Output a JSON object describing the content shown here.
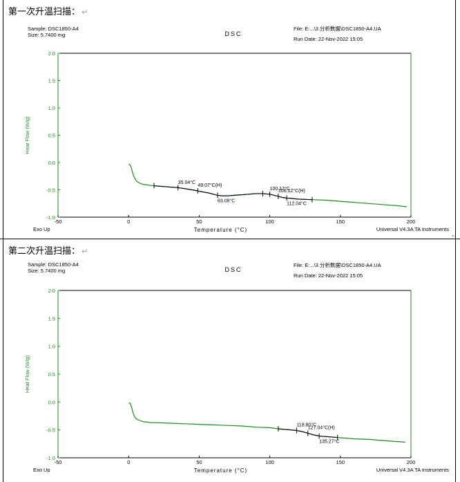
{
  "panels": [
    {
      "heading": "第一次升温扫描：",
      "return_mark": "↵",
      "sample": "Sample: DSC1850-A4",
      "size": "Size:  5.7400 mg",
      "chart_title": "DSC",
      "file": "File: E:...\\3.分析数据\\DSC1850-A4.UA",
      "run_date": "Run Date: 22-Nov-2022 15:05",
      "exo_up": "Exo Up",
      "instrument": "Universal V4.3A TA Instruments"
    },
    {
      "heading": "第二次升温扫描：",
      "return_mark": "↵",
      "sample": "Sample: DSC1850-A4",
      "size": "Size:  5.7400 mg",
      "chart_title": "DSC",
      "file": "File: E:...\\3.分析数据\\DSC1850-A4.UA",
      "run_date": "Run Date: 22-Nov-2022 15:05",
      "exo_up": "Exo Up",
      "instrument": "Universal V4.3A TA Instruments"
    }
  ],
  "chart_data": [
    {
      "type": "line",
      "title": "DSC",
      "xlabel": "Temperature (°C)",
      "ylabel": "Heat Flow (W/g)",
      "xlim": [
        -50,
        200
      ],
      "ylim": [
        -1.0,
        2.0
      ],
      "x_ticks": [
        "-50",
        "0",
        "50",
        "100",
        "150",
        "200"
      ],
      "y_ticks": [
        "2.0",
        "1.5",
        "1.0",
        "0.5",
        "0.0",
        "-0.5",
        "-1.0"
      ],
      "series": [
        {
          "x": [
            0,
            1,
            2,
            3,
            4,
            5,
            6,
            8,
            10,
            13,
            16,
            20,
            25,
            30,
            35,
            40,
            45,
            49,
            53,
            57,
            60,
            63,
            66,
            70,
            75,
            80,
            85,
            90,
            95,
            100,
            103,
            106,
            109,
            112,
            116,
            120,
            130,
            140,
            150,
            160,
            170,
            180,
            190,
            197
          ],
          "y": [
            -0.03,
            -0.04,
            -0.1,
            -0.2,
            -0.27,
            -0.32,
            -0.35,
            -0.38,
            -0.4,
            -0.41,
            -0.42,
            -0.43,
            -0.44,
            -0.45,
            -0.46,
            -0.48,
            -0.5,
            -0.52,
            -0.54,
            -0.56,
            -0.58,
            -0.6,
            -0.61,
            -0.61,
            -0.6,
            -0.59,
            -0.58,
            -0.57,
            -0.57,
            -0.58,
            -0.6,
            -0.62,
            -0.64,
            -0.65,
            -0.66,
            -0.67,
            -0.68,
            -0.69,
            -0.71,
            -0.73,
            -0.75,
            -0.77,
            -0.79,
            -0.81
          ]
        }
      ],
      "annotations": [
        {
          "text": "35.04°C",
          "x": 35,
          "y": -0.47
        },
        {
          "text": "49.07°C(H)",
          "x": 49,
          "y": -0.52
        },
        {
          "text": "63.08°C",
          "x": 63,
          "y": -0.6
        },
        {
          "text": "100.17°C",
          "x": 100,
          "y": -0.58
        },
        {
          "text": "106.12°C(H)",
          "x": 106,
          "y": -0.62
        },
        {
          "text": "112.04°C",
          "x": 112,
          "y": -0.65
        }
      ],
      "markers_x": [
        18,
        35,
        49,
        63,
        95,
        100,
        106,
        112,
        130
      ]
    },
    {
      "type": "line",
      "title": "DSC",
      "xlabel": "Temperature (°C)",
      "ylabel": "Heat Flow (W/g)",
      "xlim": [
        -50,
        200
      ],
      "ylim": [
        -1.0,
        2.0
      ],
      "x_ticks": [
        "-50",
        "0",
        "50",
        "100",
        "150",
        "200"
      ],
      "y_ticks": [
        "2.0",
        "1.5",
        "1.0",
        "0.5",
        "0.0",
        "-0.5",
        "-1.0"
      ],
      "series": [
        {
          "x": [
            0,
            1,
            2,
            3,
            4,
            5,
            6,
            8,
            10,
            13,
            16,
            20,
            30,
            40,
            50,
            60,
            70,
            80,
            90,
            100,
            106,
            110,
            115,
            119,
            123,
            127,
            131,
            135,
            140,
            145,
            150,
            160,
            170,
            180,
            190,
            196
          ],
          "y": [
            -0.02,
            -0.02,
            -0.08,
            -0.18,
            -0.25,
            -0.29,
            -0.31,
            -0.33,
            -0.35,
            -0.36,
            -0.37,
            -0.37,
            -0.38,
            -0.39,
            -0.4,
            -0.41,
            -0.42,
            -0.43,
            -0.45,
            -0.46,
            -0.48,
            -0.49,
            -0.5,
            -0.51,
            -0.53,
            -0.56,
            -0.59,
            -0.61,
            -0.62,
            -0.63,
            -0.64,
            -0.66,
            -0.67,
            -0.69,
            -0.71,
            -0.72
          ],
          "fit_x": [
            106,
            148
          ]
        }
      ],
      "annotations": [
        {
          "text": "118.80°C",
          "x": 119,
          "y": -0.51
        },
        {
          "text": "127.04°C(H)",
          "x": 127,
          "y": -0.56
        },
        {
          "text": "135.27°C",
          "x": 135,
          "y": -0.61
        }
      ],
      "markers_x": [
        106,
        119,
        127,
        135,
        148
      ]
    }
  ]
}
